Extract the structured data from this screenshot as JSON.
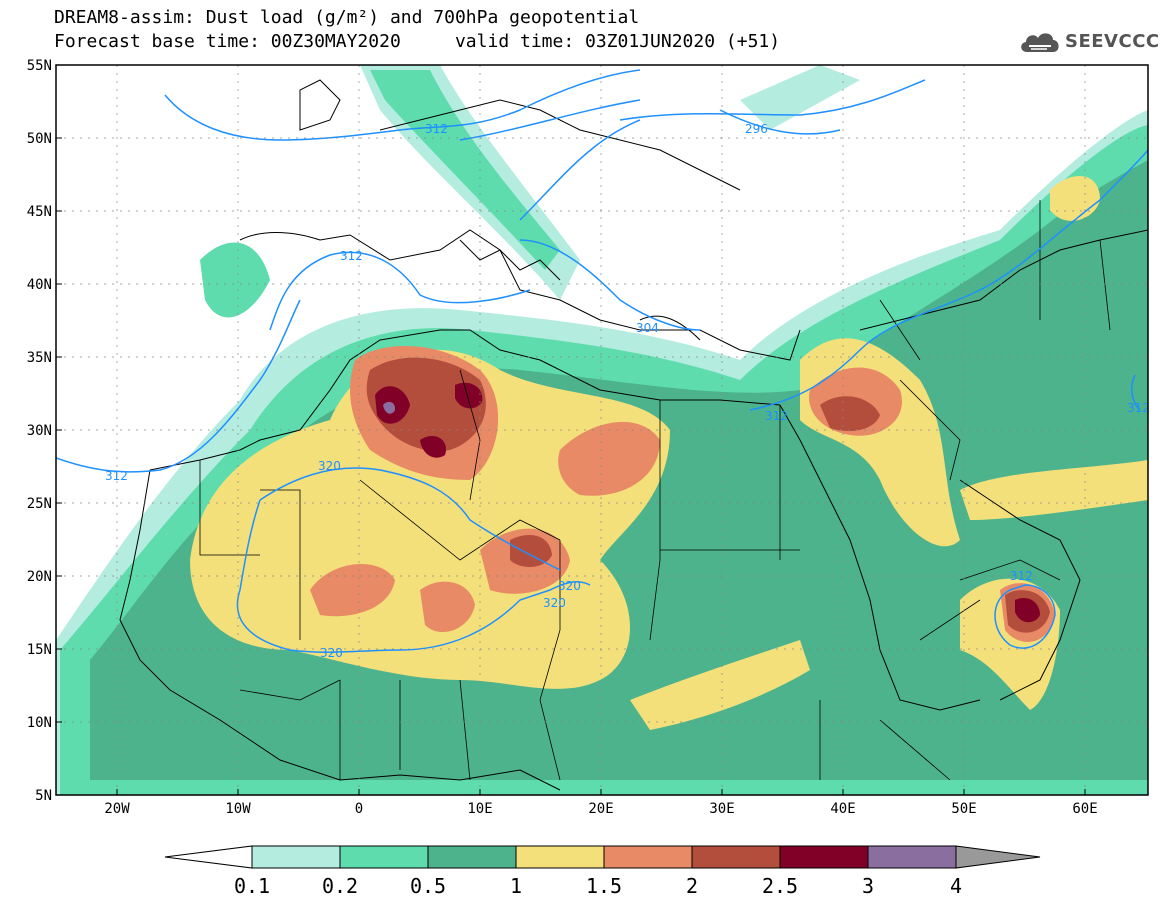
{
  "title": {
    "line1": "DREAM8-assim: Dust load (g/m²) and 700hPa geopotential",
    "line2": "Forecast base time: 00Z30MAY2020     valid time: 03Z01JUN2020 (+51)"
  },
  "logo": {
    "text": "SEEVCCC",
    "icon": "cloud-icon"
  },
  "map": {
    "lon_range": [
      -25,
      65
    ],
    "lat_range": [
      5,
      55
    ],
    "background": "#ffffff",
    "lat_ticks": [
      "55N",
      "50N",
      "45N",
      "40N",
      "35N",
      "30N",
      "25N",
      "20N",
      "15N",
      "10N",
      "5N"
    ],
    "lon_ticks": [
      "20W",
      "10W",
      "0",
      "10E",
      "20E",
      "30E",
      "40E",
      "50E",
      "60E"
    ],
    "contour_color": "#1e90ff",
    "contour_labels": [
      "312",
      "296",
      "312",
      "304",
      "312",
      "312",
      "320",
      "320",
      "320",
      "320",
      "312",
      "312"
    ]
  },
  "colorbar": {
    "labels": [
      "0.1",
      "0.2",
      "0.5",
      "1",
      "1.5",
      "2",
      "2.5",
      "3",
      "4"
    ],
    "colors": [
      "#b4ece0",
      "#5edcad",
      "#4db38c",
      "#f4e07a",
      "#e88a66",
      "#b34d3c",
      "#800028",
      "#8a6ea0"
    ],
    "under_color": "#ffffff",
    "over_color": "#999999"
  }
}
